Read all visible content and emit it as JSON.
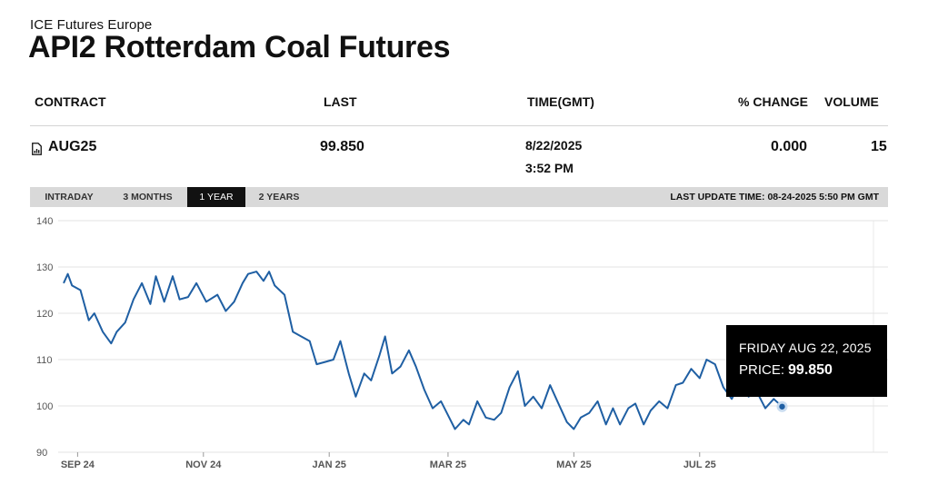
{
  "exchange": "ICE Futures Europe",
  "title": "API2 Rotterdam Coal Futures",
  "table": {
    "headers": {
      "contract": "CONTRACT",
      "last": "LAST",
      "time": "TIME(GMT)",
      "change": "% CHANGE",
      "volume": "VOLUME"
    },
    "row": {
      "contract": "AUG25",
      "last": "99.850",
      "date": "8/22/2025",
      "time": "3:52 PM",
      "change": "0.000",
      "volume": "15"
    }
  },
  "tabs": [
    "INTRADAY",
    "3 MONTHS",
    "1 YEAR",
    "2 YEARS"
  ],
  "active_tab": "1 YEAR",
  "last_update": "LAST UPDATE TIME: 08-24-2025 5:50 PM GMT",
  "tooltip": {
    "date": "FRIDAY AUG 22, 2025",
    "price_label": "PRICE:",
    "price": "99.850"
  },
  "colors": {
    "line": "#1f5fa3",
    "tooltip_bg": "#000000",
    "tab_active": "#111111",
    "tab_bar": "#d9d9d9"
  },
  "icons": {
    "contract": "chart-document-icon"
  },
  "chart_data": {
    "type": "line",
    "ylim": [
      90,
      140
    ],
    "yticks": [
      90,
      100,
      110,
      120,
      130,
      140
    ],
    "xlim": [
      0,
      58
    ],
    "xticks": [
      {
        "x": 1,
        "label": "SEP 24"
      },
      {
        "x": 10,
        "label": "NOV 24"
      },
      {
        "x": 19,
        "label": "JAN 25"
      },
      {
        "x": 27.5,
        "label": "MAR 25"
      },
      {
        "x": 36.5,
        "label": "MAY 25"
      },
      {
        "x": 45.5,
        "label": "JUL 25"
      }
    ],
    "grid": true,
    "series": [
      {
        "values": [
          [
            0,
            126.5
          ],
          [
            0.3,
            128.5
          ],
          [
            0.6,
            126
          ],
          [
            1.2,
            125
          ],
          [
            1.8,
            118.5
          ],
          [
            2.2,
            120
          ],
          [
            2.8,
            116
          ],
          [
            3.4,
            113.5
          ],
          [
            3.8,
            116
          ],
          [
            4.4,
            118
          ],
          [
            5.0,
            123
          ],
          [
            5.6,
            126.5
          ],
          [
            6.2,
            122
          ],
          [
            6.6,
            128
          ],
          [
            7.2,
            122.5
          ],
          [
            7.8,
            128
          ],
          [
            8.3,
            123
          ],
          [
            8.9,
            123.5
          ],
          [
            9.5,
            126.5
          ],
          [
            10.2,
            122.5
          ],
          [
            11.0,
            124
          ],
          [
            11.6,
            120.5
          ],
          [
            12.2,
            122.5
          ],
          [
            12.8,
            126.5
          ],
          [
            13.2,
            128.5
          ],
          [
            13.8,
            129
          ],
          [
            14.3,
            127
          ],
          [
            14.7,
            129
          ],
          [
            15.1,
            126
          ],
          [
            15.8,
            124
          ],
          [
            16.4,
            116
          ],
          [
            17.0,
            115
          ],
          [
            17.6,
            114
          ],
          [
            18.1,
            109
          ],
          [
            18.7,
            109.5
          ],
          [
            19.3,
            110
          ],
          [
            19.8,
            114
          ],
          [
            20.4,
            107
          ],
          [
            20.9,
            102
          ],
          [
            21.5,
            107
          ],
          [
            22.0,
            105.5
          ],
          [
            22.6,
            111
          ],
          [
            23.0,
            115
          ],
          [
            23.5,
            107
          ],
          [
            24.1,
            108.5
          ],
          [
            24.7,
            112
          ],
          [
            25.2,
            108.5
          ],
          [
            25.8,
            103.5
          ],
          [
            26.4,
            99.5
          ],
          [
            27.0,
            101
          ],
          [
            27.5,
            98
          ],
          [
            28.0,
            95
          ],
          [
            28.6,
            97
          ],
          [
            29.0,
            96
          ],
          [
            29.6,
            101
          ],
          [
            30.2,
            97.5
          ],
          [
            30.8,
            97
          ],
          [
            31.3,
            98.5
          ],
          [
            31.9,
            104
          ],
          [
            32.5,
            107.5
          ],
          [
            33.0,
            100
          ],
          [
            33.6,
            102
          ],
          [
            34.2,
            99.5
          ],
          [
            34.8,
            104.5
          ],
          [
            35.4,
            100.5
          ],
          [
            36.0,
            96.5
          ],
          [
            36.5,
            95
          ],
          [
            37.0,
            97.5
          ],
          [
            37.6,
            98.5
          ],
          [
            38.2,
            101
          ],
          [
            38.8,
            96
          ],
          [
            39.3,
            99.5
          ],
          [
            39.8,
            96
          ],
          [
            40.4,
            99.5
          ],
          [
            40.9,
            100.5
          ],
          [
            41.5,
            96
          ],
          [
            42.0,
            99
          ],
          [
            42.6,
            101
          ],
          [
            43.2,
            99.5
          ],
          [
            43.8,
            104.5
          ],
          [
            44.3,
            105
          ],
          [
            44.9,
            108
          ],
          [
            45.5,
            106
          ],
          [
            46.0,
            110
          ],
          [
            46.6,
            109
          ],
          [
            47.2,
            104
          ],
          [
            47.8,
            101.5
          ],
          [
            48.4,
            105
          ],
          [
            49.0,
            102
          ],
          [
            49.6,
            103
          ],
          [
            50.2,
            99.5
          ],
          [
            50.8,
            101.5
          ],
          [
            51.4,
            99.85
          ]
        ]
      }
    ]
  }
}
